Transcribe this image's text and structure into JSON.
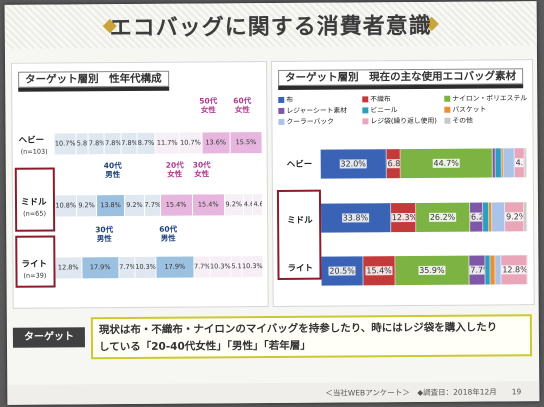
{
  "title": "エコバッグに関する消費者意識",
  "left_panel": {
    "heading": "ターゲット層別　性年代構成",
    "rows": [
      {
        "label": "ヘビー",
        "n": "(n=103)",
        "values": [
          "10.7%",
          "5.8%",
          "7.8%",
          "7.8%",
          "7.8%",
          "8.7%",
          "11.7%",
          "10.7%",
          "13.6%",
          "15.5%"
        ]
      },
      {
        "label": "ミドル",
        "n": "(n=65)",
        "values": [
          "10.8%",
          "9.2%",
          "13.8%",
          "9.2%",
          "7.7%",
          "15.4%",
          "15.4%",
          "9.2%",
          "4.6%",
          "4.6%"
        ]
      },
      {
        "label": "ライト",
        "n": "(n=39)",
        "values": [
          "12.8%",
          "17.9%",
          "7.7%",
          "10.3%",
          "17.9%",
          "7.7%",
          "10.3%",
          "5.1%",
          "10.3%"
        ]
      }
    ],
    "annotations": [
      "50代\n女性",
      "60代\n女性",
      "40代\n男性",
      "20代\n女性",
      "30代\n女性",
      "30代\n男性",
      "60代\n男性"
    ]
  },
  "right_panel": {
    "heading": "ターゲット層別　現在の主な使用エコバッグ素材",
    "legend": [
      "布",
      "不織布",
      "ナイロン・ポリエステル",
      "レジャーシート素材",
      "ビニール",
      "バスケット",
      "クーラーバック",
      "レジ袋(繰り返し使用)",
      "その他"
    ],
    "legend_colors": [
      "#3a63b5",
      "#c33a3a",
      "#7cb342",
      "#7e57a8",
      "#2c9fbf",
      "#e89035",
      "#a9c4e8",
      "#e8a6b8",
      "#c8c8c8"
    ]
  },
  "chart_data": {
    "type": "bar",
    "orientation": "horizontal-stacked-100",
    "categories": [
      "ヘビー",
      "ミドル",
      "ライト"
    ],
    "series": [
      {
        "name": "布",
        "values": [
          32.0,
          33.8,
          20.5
        ]
      },
      {
        "name": "不織布",
        "values": [
          6.8,
          12.3,
          15.4
        ]
      },
      {
        "name": "ナイロン・ポリエステル",
        "values": [
          44.7,
          26.2,
          35.9
        ]
      },
      {
        "name": "レジャーシート素材",
        "values": [
          1.5,
          6.2,
          7.7
        ]
      },
      {
        "name": "ビニール",
        "values": [
          3.0,
          3.1,
          2.6
        ]
      },
      {
        "name": "バスケット",
        "values": [
          1.0,
          1.5,
          2.6
        ]
      },
      {
        "name": "クーラーバック",
        "values": [
          5.1,
          6.2,
          2.6
        ]
      },
      {
        "name": "レジ袋(繰り返し使用)",
        "values": [
          4.9,
          9.2,
          12.8
        ]
      },
      {
        "name": "その他",
        "values": [
          1.0,
          1.5,
          0
        ]
      }
    ],
    "data_labels": [
      [
        "32.0%",
        "6.8%",
        "44.7%",
        "",
        "",
        "",
        "",
        "4.9%",
        ""
      ],
      [
        "33.8%",
        "12.3%",
        "26.2%",
        "6.2%",
        "",
        "",
        "",
        "9.2%",
        ""
      ],
      [
        "20.5%",
        "15.4%",
        "35.9%",
        "7.7%",
        "",
        "",
        "",
        "12.8%",
        ""
      ]
    ]
  },
  "target": {
    "tag": "ターゲット",
    "line1": "現状は布・不織布・ナイロンのマイバッグを持参したり、時にはレジ袋を購入したり",
    "line2": "している「20-40代女性」「男性」「若年層」"
  },
  "footer": "＜当社WEBアンケート＞　◆調査日：2018年12月　　19"
}
